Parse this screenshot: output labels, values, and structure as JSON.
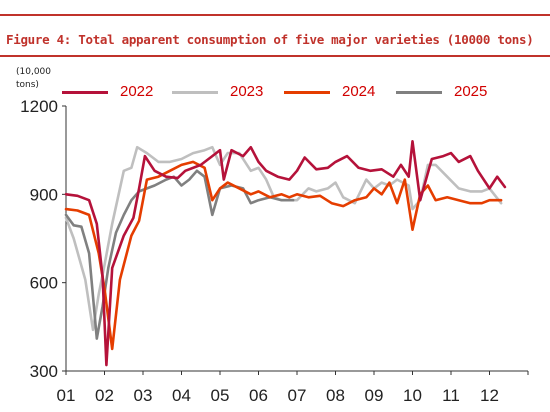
{
  "figure_title": "Figure 4: Total apparent consumption of five major varieties (10000 tons)",
  "unit_label": "(10,000\ntons)",
  "colors": {
    "accent": "#c0322b"
  },
  "chart_data": {
    "type": "line",
    "title": "Figure 4: Total apparent consumption of five major varieties (10000 tons)",
    "ylabel": "(10,000 tons)",
    "xlabel": "",
    "categories": [
      "01",
      "02",
      "03",
      "04",
      "05",
      "06",
      "07",
      "08",
      "09",
      "10",
      "11",
      "12"
    ],
    "ylim": [
      300,
      1200
    ],
    "yticks": [
      300,
      600,
      900,
      1200
    ],
    "grid": false,
    "legend_position": "top",
    "series": [
      {
        "name": "2022",
        "color": "#b5123a",
        "points": [
          [
            1,
            900
          ],
          [
            1.3,
            895
          ],
          [
            1.6,
            880
          ],
          [
            1.8,
            800
          ],
          [
            1.95,
            620
          ],
          [
            2.05,
            320
          ],
          [
            2.2,
            650
          ],
          [
            2.5,
            760
          ],
          [
            2.75,
            820
          ],
          [
            2.9,
            920
          ],
          [
            3.05,
            1030
          ],
          [
            3.3,
            980
          ],
          [
            3.6,
            960
          ],
          [
            3.9,
            955
          ],
          [
            4.1,
            980
          ],
          [
            4.5,
            1000
          ],
          [
            4.8,
            1030
          ],
          [
            5.0,
            1050
          ],
          [
            5.1,
            950
          ],
          [
            5.3,
            1050
          ],
          [
            5.6,
            1030
          ],
          [
            5.8,
            1060
          ],
          [
            6.0,
            1010
          ],
          [
            6.2,
            980
          ],
          [
            6.5,
            960
          ],
          [
            6.8,
            950
          ],
          [
            7.0,
            980
          ],
          [
            7.2,
            1025
          ],
          [
            7.5,
            985
          ],
          [
            7.8,
            990
          ],
          [
            8.0,
            1010
          ],
          [
            8.3,
            1030
          ],
          [
            8.6,
            990
          ],
          [
            8.9,
            980
          ],
          [
            9.2,
            985
          ],
          [
            9.5,
            960
          ],
          [
            9.7,
            1000
          ],
          [
            9.9,
            960
          ],
          [
            10.0,
            1080
          ],
          [
            10.2,
            880
          ],
          [
            10.5,
            1020
          ],
          [
            10.8,
            1030
          ],
          [
            11.0,
            1040
          ],
          [
            11.2,
            1010
          ],
          [
            11.5,
            1030
          ],
          [
            11.7,
            980
          ],
          [
            12.0,
            920
          ],
          [
            12.2,
            960
          ],
          [
            12.4,
            925
          ]
        ]
      },
      {
        "name": "2023",
        "color": "#bfbfbf",
        "points": [
          [
            1,
            820
          ],
          [
            1.2,
            750
          ],
          [
            1.5,
            610
          ],
          [
            1.7,
            440
          ],
          [
            1.85,
            560
          ],
          [
            2.0,
            660
          ],
          [
            2.2,
            800
          ],
          [
            2.5,
            980
          ],
          [
            2.7,
            990
          ],
          [
            2.85,
            1060
          ],
          [
            3.1,
            1040
          ],
          [
            3.4,
            1010
          ],
          [
            3.7,
            1010
          ],
          [
            4.0,
            1020
          ],
          [
            4.3,
            1040
          ],
          [
            4.6,
            1050
          ],
          [
            4.8,
            1060
          ],
          [
            5.0,
            1000
          ],
          [
            5.2,
            1040
          ],
          [
            5.5,
            1040
          ],
          [
            5.8,
            980
          ],
          [
            6.0,
            990
          ],
          [
            6.2,
            950
          ],
          [
            6.4,
            890
          ],
          [
            6.6,
            880
          ],
          [
            6.8,
            880
          ],
          [
            7.0,
            880
          ],
          [
            7.3,
            920
          ],
          [
            7.5,
            910
          ],
          [
            7.8,
            920
          ],
          [
            8.0,
            940
          ],
          [
            8.2,
            890
          ],
          [
            8.5,
            870
          ],
          [
            8.8,
            950
          ],
          [
            9.0,
            920
          ],
          [
            9.2,
            940
          ],
          [
            9.4,
            930
          ],
          [
            9.6,
            950
          ],
          [
            9.9,
            930
          ],
          [
            10.0,
            850
          ],
          [
            10.2,
            880
          ],
          [
            10.4,
            1000
          ],
          [
            10.6,
            1000
          ],
          [
            10.9,
            960
          ],
          [
            11.2,
            920
          ],
          [
            11.5,
            910
          ],
          [
            11.8,
            910
          ],
          [
            12.0,
            920
          ],
          [
            12.3,
            870
          ]
        ]
      },
      {
        "name": "2024",
        "color": "#e53d00",
        "points": [
          [
            1,
            850
          ],
          [
            1.3,
            845
          ],
          [
            1.6,
            830
          ],
          [
            1.85,
            700
          ],
          [
            2.0,
            580
          ],
          [
            2.2,
            375
          ],
          [
            2.4,
            610
          ],
          [
            2.7,
            760
          ],
          [
            2.9,
            810
          ],
          [
            3.1,
            950
          ],
          [
            3.4,
            960
          ],
          [
            3.7,
            980
          ],
          [
            4.0,
            1000
          ],
          [
            4.3,
            1010
          ],
          [
            4.6,
            990
          ],
          [
            4.8,
            880
          ],
          [
            5.0,
            920
          ],
          [
            5.2,
            940
          ],
          [
            5.5,
            920
          ],
          [
            5.8,
            900
          ],
          [
            6.0,
            910
          ],
          [
            6.3,
            890
          ],
          [
            6.6,
            900
          ],
          [
            6.8,
            890
          ],
          [
            7.0,
            900
          ],
          [
            7.3,
            890
          ],
          [
            7.6,
            895
          ],
          [
            7.9,
            870
          ],
          [
            8.2,
            860
          ],
          [
            8.5,
            880
          ],
          [
            8.8,
            890
          ],
          [
            9.0,
            920
          ],
          [
            9.2,
            900
          ],
          [
            9.4,
            940
          ],
          [
            9.6,
            870
          ],
          [
            9.8,
            950
          ],
          [
            10.0,
            780
          ],
          [
            10.2,
            900
          ],
          [
            10.4,
            930
          ],
          [
            10.6,
            880
          ],
          [
            10.9,
            890
          ],
          [
            11.2,
            880
          ],
          [
            11.5,
            870
          ],
          [
            11.8,
            870
          ],
          [
            12.0,
            880
          ],
          [
            12.3,
            880
          ]
        ]
      },
      {
        "name": "2025",
        "color": "#808080",
        "points": [
          [
            1,
            830
          ],
          [
            1.2,
            795
          ],
          [
            1.4,
            790
          ],
          [
            1.6,
            700
          ],
          [
            1.8,
            410
          ],
          [
            1.95,
            520
          ],
          [
            2.1,
            650
          ],
          [
            2.3,
            770
          ],
          [
            2.5,
            830
          ],
          [
            2.7,
            880
          ],
          [
            2.9,
            910
          ],
          [
            3.1,
            920
          ],
          [
            3.3,
            930
          ],
          [
            3.6,
            950
          ],
          [
            3.8,
            960
          ],
          [
            4.0,
            930
          ],
          [
            4.2,
            950
          ],
          [
            4.4,
            980
          ],
          [
            4.6,
            960
          ],
          [
            4.8,
            830
          ],
          [
            5.0,
            920
          ],
          [
            5.3,
            930
          ],
          [
            5.6,
            920
          ],
          [
            5.8,
            870
          ],
          [
            6.0,
            880
          ],
          [
            6.3,
            890
          ],
          [
            6.6,
            880
          ],
          [
            6.9,
            880
          ]
        ]
      }
    ]
  }
}
